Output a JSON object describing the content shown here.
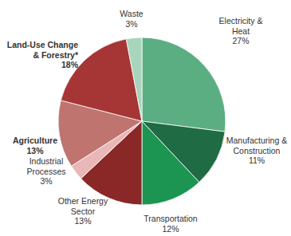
{
  "chart_data": {
    "type": "pie",
    "categories": [
      "Electricity & Heat",
      "Manufacturing & Construction",
      "Transportation",
      "Other Energy Sector",
      "Industrial Processes",
      "Agriculture",
      "Land-Use Change & Forestry*",
      "Waste"
    ],
    "values": [
      27,
      11,
      12,
      13,
      3,
      13,
      18,
      3
    ],
    "value_labels": [
      "27%",
      "11%",
      "12%",
      "13%",
      "3%",
      "13%",
      "18%",
      "3%"
    ],
    "colors": [
      "#5aae82",
      "#1f6b43",
      "#1c9452",
      "#8a2727",
      "#e9b7b7",
      "#c0746f",
      "#a63535",
      "#a9d5bd"
    ],
    "data_labels": true
  }
}
